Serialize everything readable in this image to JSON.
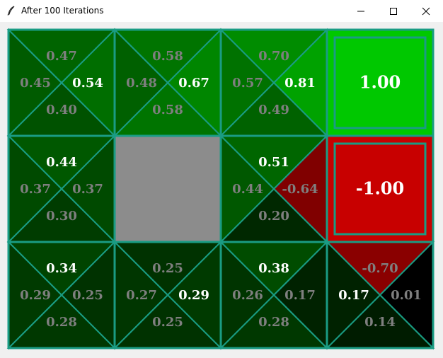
{
  "window": {
    "title": "After 100 Iterations",
    "controls": [
      "minimize",
      "maximize",
      "close"
    ]
  },
  "grid": {
    "rows": 3,
    "cols": 4,
    "line_color": "#1a9c84",
    "value_color_bright": "#ffffff",
    "value_color_dim": "#7f7f7f",
    "cells": [
      {
        "row": 0,
        "col": 0,
        "type": "q",
        "fills": {
          "up": "#006400",
          "left": "#005b00",
          "right": "#006e00",
          "down": "#005200"
        },
        "values": {
          "up": "0.47",
          "left": "0.45",
          "right": "0.54",
          "down": "0.40"
        },
        "best": "right"
      },
      {
        "row": 0,
        "col": 1,
        "type": "q",
        "fills": {
          "up": "#007400",
          "left": "#006000",
          "right": "#008600",
          "down": "#007400"
        },
        "values": {
          "up": "0.58",
          "left": "0.48",
          "right": "0.67",
          "down": "0.58"
        },
        "best": "right"
      },
      {
        "row": 0,
        "col": 2,
        "type": "q",
        "fills": {
          "up": "#008c00",
          "left": "#007200",
          "right": "#00a200",
          "down": "#006200"
        },
        "values": {
          "up": "0.70",
          "left": "0.57",
          "right": "0.81",
          "down": "0.49"
        },
        "best": "right"
      },
      {
        "row": 0,
        "col": 3,
        "type": "terminal",
        "fill": "#00c800",
        "value": "1.00"
      },
      {
        "row": 1,
        "col": 0,
        "type": "q",
        "fills": {
          "up": "#005800",
          "left": "#004a00",
          "right": "#004a00",
          "down": "#003c00"
        },
        "values": {
          "up": "0.44",
          "left": "0.37",
          "right": "0.37",
          "down": "0.30"
        },
        "best": "up"
      },
      {
        "row": 1,
        "col": 1,
        "type": "wall",
        "fill": "#8c8c8c"
      },
      {
        "row": 1,
        "col": 2,
        "type": "q",
        "fills": {
          "up": "#006600",
          "left": "#005800",
          "right": "#800000",
          "down": "#002800"
        },
        "values": {
          "up": "0.51",
          "left": "0.44",
          "right": "-0.64",
          "down": "0.20"
        },
        "best": "up"
      },
      {
        "row": 1,
        "col": 3,
        "type": "terminal",
        "fill": "#c80000",
        "value": "-1.00"
      },
      {
        "row": 2,
        "col": 0,
        "type": "q",
        "fills": {
          "up": "#004400",
          "left": "#003a00",
          "right": "#003200",
          "down": "#003800"
        },
        "values": {
          "up": "0.34",
          "left": "0.29",
          "right": "0.25",
          "down": "0.28"
        },
        "best": "up"
      },
      {
        "row": 2,
        "col": 1,
        "type": "q",
        "fills": {
          "up": "#003200",
          "left": "#003600",
          "right": "#003a00",
          "down": "#003200"
        },
        "values": {
          "up": "0.25",
          "left": "0.27",
          "right": "0.29",
          "down": "0.25"
        },
        "best": "right"
      },
      {
        "row": 2,
        "col": 2,
        "type": "q",
        "fills": {
          "up": "#004c00",
          "left": "#003400",
          "right": "#002200",
          "down": "#003800"
        },
        "values": {
          "up": "0.38",
          "left": "0.26",
          "right": "0.17",
          "down": "0.28"
        },
        "best": "up"
      },
      {
        "row": 2,
        "col": 3,
        "type": "q",
        "fills": {
          "up": "#8a0000",
          "left": "#002200",
          "right": "#000000",
          "down": "#001c00"
        },
        "values": {
          "up": "-0.70",
          "left": "0.17",
          "right": "0.01",
          "down": "0.14"
        },
        "best": "left"
      }
    ]
  }
}
